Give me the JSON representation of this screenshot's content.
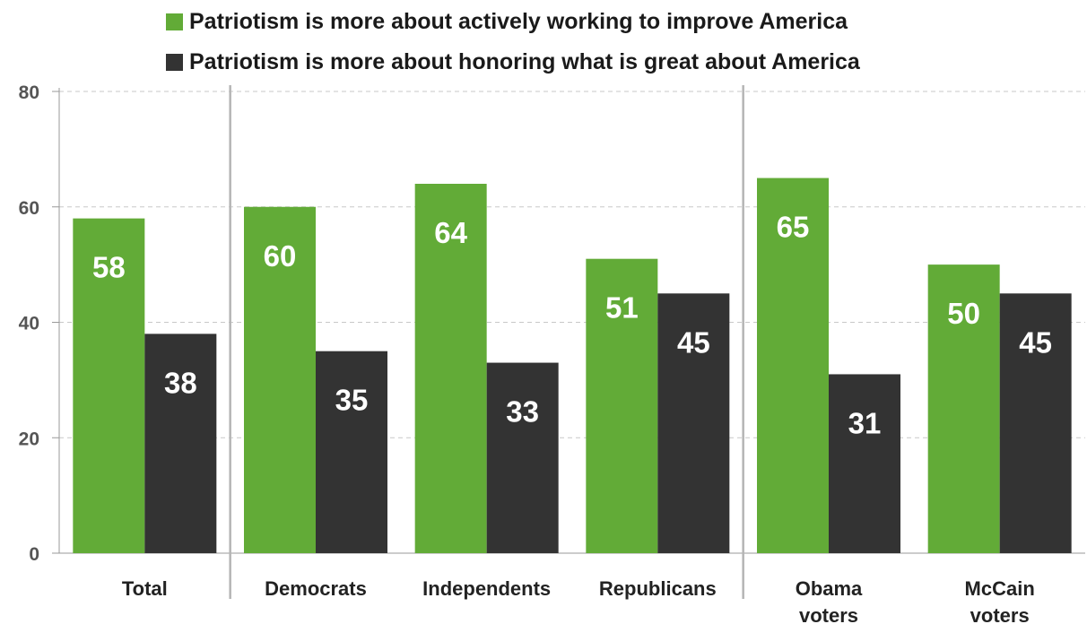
{
  "chart_data": {
    "type": "bar",
    "title": "",
    "xlabel": "",
    "ylabel": "",
    "ylim": [
      0,
      80
    ],
    "yticks": [
      "0",
      "20",
      "40",
      "60",
      "80"
    ],
    "grid": true,
    "legend_position": "top",
    "categories": [
      "Total",
      "Democrats",
      "Independents",
      "Republicans",
      "Obama voters",
      "McCain voters"
    ],
    "category_lines": [
      [
        "Total"
      ],
      [
        "Democrats"
      ],
      [
        "Independents"
      ],
      [
        "Republicans"
      ],
      [
        "Obama",
        "voters"
      ],
      [
        "McCain",
        "voters"
      ]
    ],
    "series": [
      {
        "name": "Patriotism is more about actively working to improve America",
        "color": "#62ab37",
        "values": [
          58,
          60,
          64,
          51,
          65,
          50
        ]
      },
      {
        "name": "Patriotism is more about honoring what is great about America",
        "color": "#333333",
        "values": [
          38,
          35,
          33,
          45,
          31,
          45
        ]
      }
    ],
    "group_dividers_after": [
      0,
      3
    ]
  }
}
